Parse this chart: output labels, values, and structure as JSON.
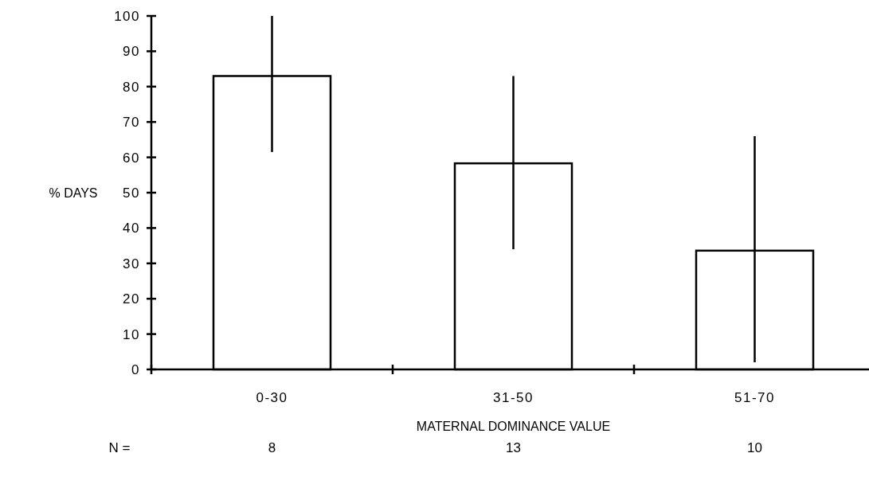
{
  "chart_data": {
    "type": "bar",
    "xlabel": "MATERNAL DOMINANCE VALUE",
    "ylabel": "% DAYS",
    "categories": [
      "0-30",
      "31-50",
      "51-70"
    ],
    "values": [
      83,
      58.3,
      33.6
    ],
    "errors": [
      [
        61.5,
        100
      ],
      [
        34,
        83
      ],
      [
        2,
        66
      ]
    ],
    "color": "#ffffff",
    "ylim": [
      0,
      100
    ],
    "yticks": [
      0,
      10,
      20,
      30,
      40,
      50,
      60,
      70,
      80,
      90,
      100
    ],
    "grid": false,
    "annotations": [
      "N =",
      "8",
      "13",
      "10"
    ]
  }
}
